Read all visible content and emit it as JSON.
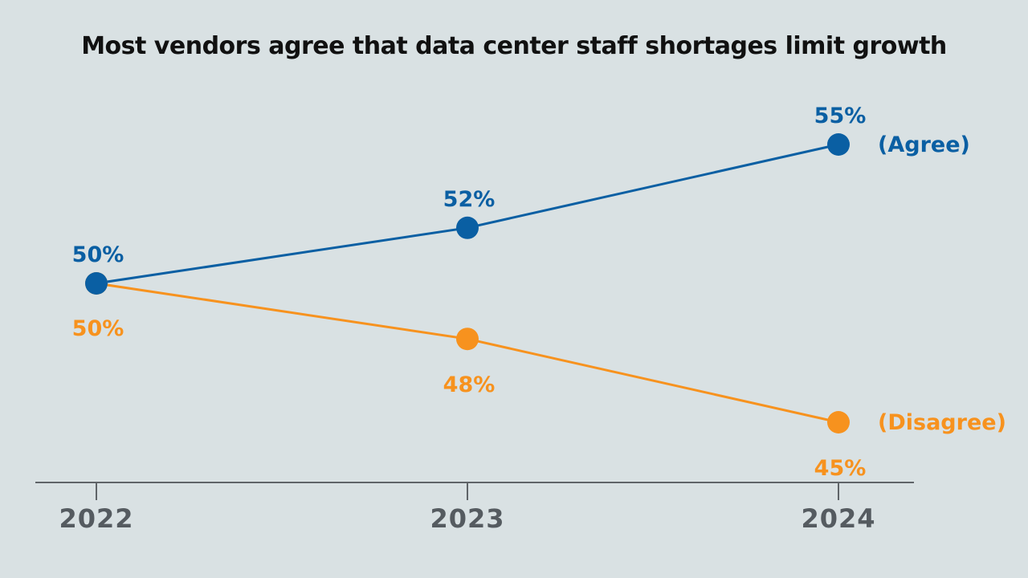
{
  "chart_data": {
    "type": "line",
    "title": "Most vendors agree that data center staff shortages limit growth",
    "categories": [
      "2022",
      "2023",
      "2024"
    ],
    "series": [
      {
        "name": "(Agree)",
        "color": "#0a5fa3",
        "values": [
          50,
          52,
          55
        ],
        "labels": [
          "50%",
          "52%",
          "55%"
        ]
      },
      {
        "name": "(Disagree)",
        "color": "#f7921e",
        "values": [
          50,
          48,
          45
        ],
        "labels": [
          "50%",
          "48%",
          "45%"
        ]
      }
    ],
    "xlabel": "",
    "ylabel": "",
    "ylim": [
      45,
      55
    ],
    "grid": false,
    "legend": "right, inline at line ends",
    "axis_color": "#5f6468",
    "tick_color": "#555b60"
  }
}
